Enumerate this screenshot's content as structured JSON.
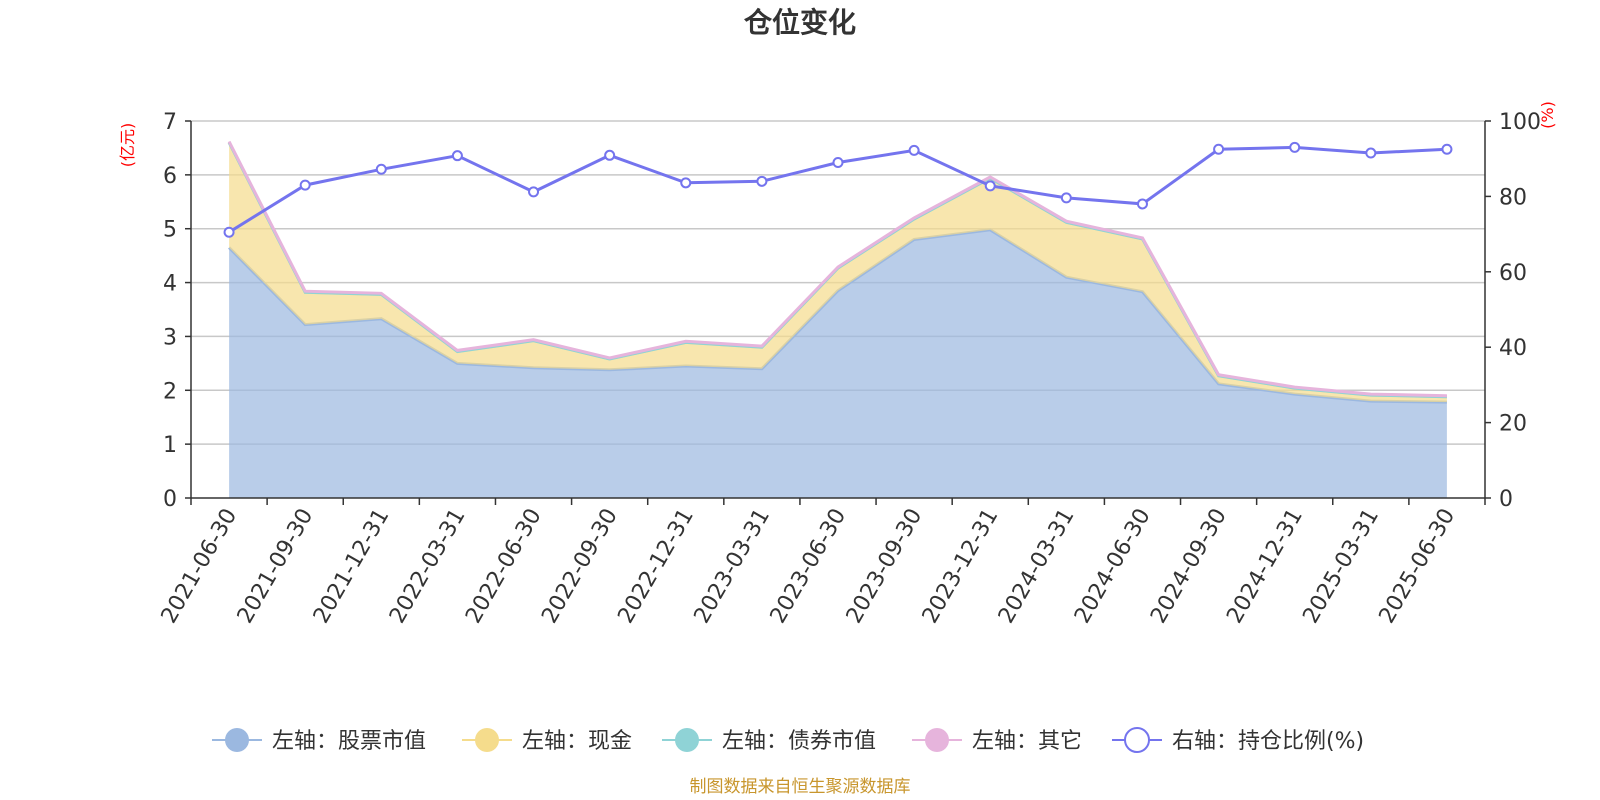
{
  "title": "仓位变化",
  "source_note": "制图数据来自恒生聚源数据库",
  "chart_data": {
    "type": "area",
    "title": "仓位变化",
    "categories": [
      "2021-06-30",
      "2021-09-30",
      "2021-12-31",
      "2022-03-31",
      "2022-06-30",
      "2022-09-30",
      "2022-12-31",
      "2023-03-31",
      "2023-06-30",
      "2023-09-30",
      "2023-12-31",
      "2024-03-31",
      "2024-06-30",
      "2024-09-30",
      "2024-12-31",
      "2025-03-31",
      "2025-06-30"
    ],
    "left_axis": {
      "unit": "(亿元)",
      "ylim": [
        0,
        7
      ],
      "ticks": [
        0,
        1,
        2,
        3,
        4,
        5,
        6,
        7
      ]
    },
    "right_axis": {
      "unit": "(%)",
      "ylim": [
        0,
        100
      ],
      "ticks": [
        0,
        20,
        40,
        60,
        80,
        100
      ]
    },
    "grid": true,
    "legend_position": "bottom",
    "series": [
      {
        "name": "左轴：股票市值",
        "axis": "left",
        "type": "area",
        "stacked": true,
        "color": "#9bb8e0",
        "values": [
          4.65,
          3.22,
          3.33,
          2.5,
          2.42,
          2.38,
          2.45,
          2.4,
          3.85,
          4.8,
          4.98,
          4.1,
          3.83,
          2.12,
          1.93,
          1.8,
          1.78
        ]
      },
      {
        "name": "左轴：现金",
        "axis": "left",
        "type": "area",
        "stacked": true,
        "color": "#f5dc8c",
        "values": [
          1.95,
          0.6,
          0.45,
          0.22,
          0.5,
          0.2,
          0.44,
          0.4,
          0.42,
          0.38,
          0.96,
          1.02,
          0.98,
          0.15,
          0.11,
          0.11,
          0.1
        ]
      },
      {
        "name": "左轴：债券市值",
        "axis": "left",
        "type": "area",
        "stacked": true,
        "color": "#8fd3d6",
        "values": [
          0,
          0,
          0,
          0,
          0,
          0,
          0,
          0,
          0,
          0,
          0,
          0,
          0,
          0,
          0,
          0,
          0
        ]
      },
      {
        "name": "左轴：其它",
        "axis": "left",
        "type": "area",
        "stacked": true,
        "color": "#e6b4dc",
        "values": [
          0.02,
          0.02,
          0.02,
          0.02,
          0.02,
          0.02,
          0.02,
          0.02,
          0.02,
          0.02,
          0.02,
          0.02,
          0.02,
          0.02,
          0.02,
          0.02,
          0.02
        ]
      },
      {
        "name": "右轴：持仓比例(%)",
        "axis": "right",
        "type": "line",
        "color": "#7474ee",
        "values": [
          70.5,
          83.0,
          87.2,
          90.8,
          81.2,
          90.9,
          83.6,
          84.0,
          89.0,
          92.2,
          82.8,
          79.6,
          78.0,
          92.5,
          93.0,
          91.5,
          92.5
        ]
      }
    ]
  }
}
